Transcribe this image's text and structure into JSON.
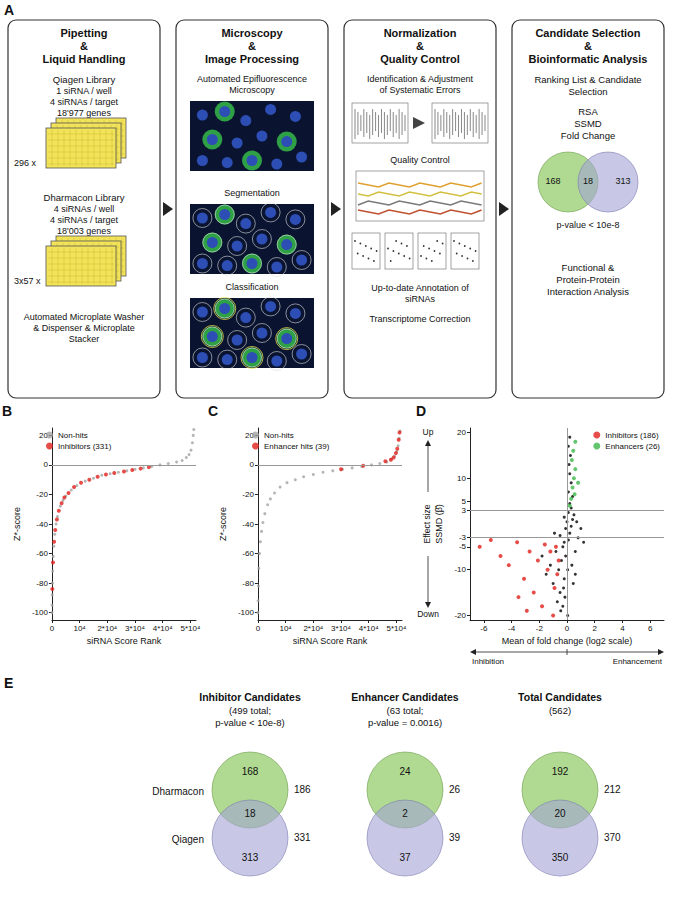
{
  "panel_a": {
    "letter": "A",
    "columns": [
      {
        "title": [
          "Pipetting",
          "&",
          "Liquid Handling"
        ],
        "libraries": [
          {
            "name": "Qiagen Library",
            "lines": [
              "1 siRNA / well",
              "4 siRNAs / target",
              "18'977 genes"
            ],
            "plates": "296 x"
          },
          {
            "name": "Dharmacon Library",
            "lines": [
              "4 siRNAs / well",
              "4 siRNAs / target",
              "18'003 genes"
            ],
            "plates": "3x57 x"
          }
        ],
        "footer": "Automated Microplate Washer & Dispenser & Microplate Stacker"
      },
      {
        "title": [
          "Microscopy",
          "&",
          "Image Processing"
        ],
        "steps": [
          "Automated Epifluorescence Microscopy",
          "Segmentation",
          "Classification"
        ]
      },
      {
        "title": [
          "Normalization",
          "&",
          "Quality Control"
        ],
        "steps": [
          "Identification & Adjustment of Systematic Errors",
          "Quality Control",
          "Up-to-date Annotation of siRNAs",
          "Transcriptome Correction"
        ]
      },
      {
        "title": [
          "Candidate Selection",
          "&",
          "Bioinformatic Analysis"
        ],
        "ranking": "Ranking List & Candidate Selection",
        "methods": [
          "RSA",
          "SSMD",
          "Fold Change"
        ],
        "venn": {
          "left": 168,
          "overlap": 18,
          "right": 313,
          "note": "p-value < 10e-8"
        },
        "footer": "Functional & Protein-Protein Interaction Analysis"
      }
    ]
  },
  "chart_data": [
    {
      "panel": "B",
      "type": "scatter",
      "x_label": "siRNA Score Rank",
      "y_label": "Z*-score",
      "xlim": [
        0,
        52000
      ],
      "xticks": [
        0,
        {
          "value": 10000,
          "label": "10⁴"
        },
        {
          "value": 20000,
          "label": "2*10⁴"
        },
        {
          "value": 30000,
          "label": "3*10⁴"
        },
        {
          "value": 40000,
          "label": "4*10⁴"
        },
        {
          "value": 50000,
          "label": "5*10⁴"
        }
      ],
      "ylim": [
        -105,
        25
      ],
      "yticks": [
        -100,
        -80,
        -60,
        -40,
        -20,
        0,
        20
      ],
      "hlines": [
        0
      ],
      "grid": false,
      "legend": "top-left",
      "series": [
        {
          "name": "Non-hits",
          "color": "#a3a3a3",
          "values": [
            [
              0,
              -100
            ],
            [
              50,
              -95
            ],
            [
              100,
              -88
            ],
            [
              200,
              -80
            ],
            [
              300,
              -72
            ],
            [
              500,
              -62
            ],
            [
              700,
              -55
            ],
            [
              1000,
              -47
            ],
            [
              1500,
              -40
            ],
            [
              2000,
              -35
            ],
            [
              3000,
              -28
            ],
            [
              4000,
              -24
            ],
            [
              5000,
              -21
            ],
            [
              7000,
              -17
            ],
            [
              9000,
              -14
            ],
            [
              12000,
              -11
            ],
            [
              15000,
              -9
            ],
            [
              18000,
              -7
            ],
            [
              21000,
              -6
            ],
            [
              24000,
              -5
            ],
            [
              27000,
              -4
            ],
            [
              30000,
              -3
            ],
            [
              33000,
              -2
            ],
            [
              36000,
              -1
            ],
            [
              39000,
              0
            ],
            [
              42000,
              1
            ],
            [
              45000,
              2
            ],
            [
              47000,
              3
            ],
            [
              48500,
              5
            ],
            [
              49500,
              7
            ],
            [
              50200,
              10
            ],
            [
              50700,
              15
            ],
            [
              51000,
              20
            ],
            [
              51200,
              24
            ]
          ]
        },
        {
          "name": "Inhibitors (331)",
          "color": "#e0201b",
          "values": [
            [
              150,
              -84
            ],
            [
              400,
              -66
            ],
            [
              800,
              -52
            ],
            [
              1200,
              -44
            ],
            [
              1800,
              -37
            ],
            [
              2500,
              -31
            ],
            [
              3500,
              -26
            ],
            [
              4500,
              -22
            ],
            [
              6000,
              -19
            ],
            [
              8000,
              -15
            ],
            [
              10500,
              -12
            ],
            [
              13500,
              -10
            ],
            [
              16500,
              -8
            ],
            [
              19500,
              -6.5
            ],
            [
              22500,
              -5.5
            ],
            [
              26000,
              -4.5
            ],
            [
              29000,
              -3.5
            ],
            [
              32000,
              -2.5
            ],
            [
              35000,
              -1.5
            ]
          ]
        }
      ]
    },
    {
      "panel": "C",
      "type": "scatter",
      "x_label": "siRNA Score Rank",
      "y_label": "Z*-score",
      "xlim": [
        0,
        52000
      ],
      "xticks": [
        0,
        {
          "value": 10000,
          "label": "10⁴"
        },
        {
          "value": 20000,
          "label": "2*10⁴"
        },
        {
          "value": 30000,
          "label": "3*10⁴"
        },
        {
          "value": 40000,
          "label": "4*10⁴"
        },
        {
          "value": 50000,
          "label": "5*10⁴"
        }
      ],
      "ylim": [
        -105,
        25
      ],
      "yticks": [
        -100,
        -80,
        -60,
        -40,
        -20,
        0,
        20
      ],
      "hlines": [
        0
      ],
      "grid": false,
      "legend": "top-left",
      "series": [
        {
          "name": "Non-hits",
          "color": "#a3a3a3",
          "values": [
            [
              0,
              -100
            ],
            [
              80,
              -92
            ],
            [
              180,
              -82
            ],
            [
              350,
              -70
            ],
            [
              600,
              -60
            ],
            [
              900,
              -52
            ],
            [
              1300,
              -45
            ],
            [
              1800,
              -39
            ],
            [
              2500,
              -33
            ],
            [
              3500,
              -27
            ],
            [
              4500,
              -23
            ],
            [
              6000,
              -19
            ],
            [
              8000,
              -15
            ],
            [
              10500,
              -12
            ],
            [
              13500,
              -10
            ],
            [
              16500,
              -8
            ],
            [
              20000,
              -6.5
            ],
            [
              23500,
              -5
            ],
            [
              27000,
              -4
            ],
            [
              30500,
              -3
            ],
            [
              34000,
              -2
            ],
            [
              37500,
              -1
            ],
            [
              41000,
              0
            ],
            [
              44000,
              1
            ],
            [
              46500,
              2
            ],
            [
              48200,
              4
            ],
            [
              49300,
              6
            ],
            [
              50100,
              9
            ],
            [
              50600,
              13
            ],
            [
              51000,
              18
            ],
            [
              51300,
              23
            ]
          ]
        },
        {
          "name": "Enhancer hits (39)",
          "color": "#e0201b",
          "values": [
            [
              30000,
              -3
            ],
            [
              38000,
              -0.5
            ],
            [
              46000,
              2.5
            ],
            [
              48000,
              3.5
            ],
            [
              49000,
              5
            ],
            [
              49800,
              8
            ],
            [
              50300,
              11
            ],
            [
              50800,
              17
            ],
            [
              51100,
              22
            ]
          ]
        }
      ]
    },
    {
      "panel": "D",
      "type": "scatter",
      "x_label": "Mean of fold change (log2 scale)",
      "y_label": "SSMD (β̂)",
      "annotations": {
        "up": "Up",
        "down": "Down",
        "effect": "Effect size",
        "left": "Inhibition",
        "right": "Enhancement"
      },
      "xlim": [
        -7,
        7
      ],
      "xticks": [
        -6,
        -4,
        -2,
        0,
        2,
        4,
        6
      ],
      "ylim": [
        -21,
        21
      ],
      "yticks": [
        -20,
        -10,
        -5,
        -3,
        3,
        5,
        10,
        20
      ],
      "hlines": [
        -3,
        3
      ],
      "vlines": [
        0
      ],
      "grid": false,
      "legend": "top-right",
      "series": [
        {
          "color": "#000000",
          "values": [
            [
              -0.3,
              -18
            ],
            [
              -0.5,
              -15
            ],
            [
              -0.2,
              -12
            ],
            [
              -0.6,
              -10
            ],
            [
              -0.4,
              -8
            ],
            [
              -0.1,
              -7
            ],
            [
              -0.8,
              -6
            ],
            [
              -0.3,
              -5
            ],
            [
              -0.2,
              -4
            ],
            [
              0.1,
              -3.5
            ],
            [
              -0.5,
              -2.5
            ],
            [
              0.2,
              -2
            ],
            [
              -0.1,
              -1
            ],
            [
              0.3,
              -0.5
            ],
            [
              0,
              0.5
            ],
            [
              0.4,
              1
            ],
            [
              -0.2,
              1.5
            ],
            [
              0.5,
              2
            ],
            [
              0.1,
              2.5
            ],
            [
              0.3,
              3.5
            ],
            [
              0.2,
              4.5
            ],
            [
              0.4,
              6
            ],
            [
              0.1,
              7
            ],
            [
              0.3,
              9
            ],
            [
              0.2,
              11
            ],
            [
              0.15,
              13
            ],
            [
              0.25,
              15
            ],
            [
              0.1,
              17
            ],
            [
              0.2,
              19
            ],
            [
              -1.2,
              -9
            ],
            [
              -1,
              -13
            ],
            [
              -0.7,
              -17
            ],
            [
              -1.5,
              -11
            ],
            [
              0.6,
              -6
            ],
            [
              0.8,
              -3
            ],
            [
              1,
              -1
            ],
            [
              0.7,
              0.5
            ],
            [
              -0.9,
              -2
            ],
            [
              0.05,
              -20
            ],
            [
              -0.15,
              -16
            ],
            [
              0.35,
              -9
            ],
            [
              0.45,
              -13
            ],
            [
              -0.45,
              -19
            ],
            [
              0.6,
              -11
            ],
            [
              -1.8,
              -7
            ],
            [
              1.2,
              -4
            ],
            [
              -0.25,
              -14
            ],
            [
              0.05,
              -10
            ]
          ]
        },
        {
          "name": "Inhibitors (186)",
          "color": "#e0201b",
          "values": [
            [
              -6.3,
              -5
            ],
            [
              -5.5,
              -3.5
            ],
            [
              -4.8,
              -7
            ],
            [
              -4.2,
              -9
            ],
            [
              -3.6,
              -4
            ],
            [
              -3.1,
              -12
            ],
            [
              -2.7,
              -6
            ],
            [
              -2.4,
              -15
            ],
            [
              -2.1,
              -8
            ],
            [
              -1.8,
              -18
            ],
            [
              -1.6,
              -4.5
            ],
            [
              -1.4,
              -10
            ],
            [
              -1.2,
              -6
            ],
            [
              -1,
              -20
            ],
            [
              -0.9,
              -14
            ],
            [
              -0.8,
              -5
            ],
            [
              -0.7,
              -11
            ],
            [
              -0.6,
              -8
            ],
            [
              -3.5,
              -16
            ],
            [
              -2.9,
              -19
            ]
          ]
        },
        {
          "name": "Enhancers (26)",
          "color": "#3cb84a",
          "values": [
            [
              0.2,
              4
            ],
            [
              0.3,
              5.5
            ],
            [
              0.4,
              8
            ],
            [
              0.5,
              10
            ],
            [
              0.6,
              12
            ],
            [
              0.35,
              14
            ],
            [
              0.45,
              16
            ],
            [
              0.6,
              18
            ],
            [
              0.55,
              6.5
            ],
            [
              0.8,
              9
            ]
          ]
        }
      ]
    }
  ],
  "panel_e": {
    "letter": "E",
    "rows": [
      "Dharmacon",
      "Qiagen"
    ],
    "colors": [
      "#8fca62",
      "#a3a3d6"
    ],
    "groups": [
      {
        "title": "Inhibitor Candidates",
        "subtitle": [
          "(499 total;",
          "p-value < 10e-8)"
        ],
        "only_top": 168,
        "overlap": 18,
        "only_bottom": 313,
        "total_top": 186,
        "total_bottom": 331
      },
      {
        "title": "Enhancer Candidates",
        "subtitle": [
          "(63 total;",
          "p-value = 0.0016)"
        ],
        "only_top": 24,
        "overlap": 2,
        "only_bottom": 37,
        "total_top": 26,
        "total_bottom": 39
      },
      {
        "title": "Total Candidates",
        "subtitle": [
          "(562)"
        ],
        "only_top": 192,
        "overlap": 20,
        "only_bottom": 350,
        "total_top": 212,
        "total_bottom": 370
      }
    ]
  }
}
